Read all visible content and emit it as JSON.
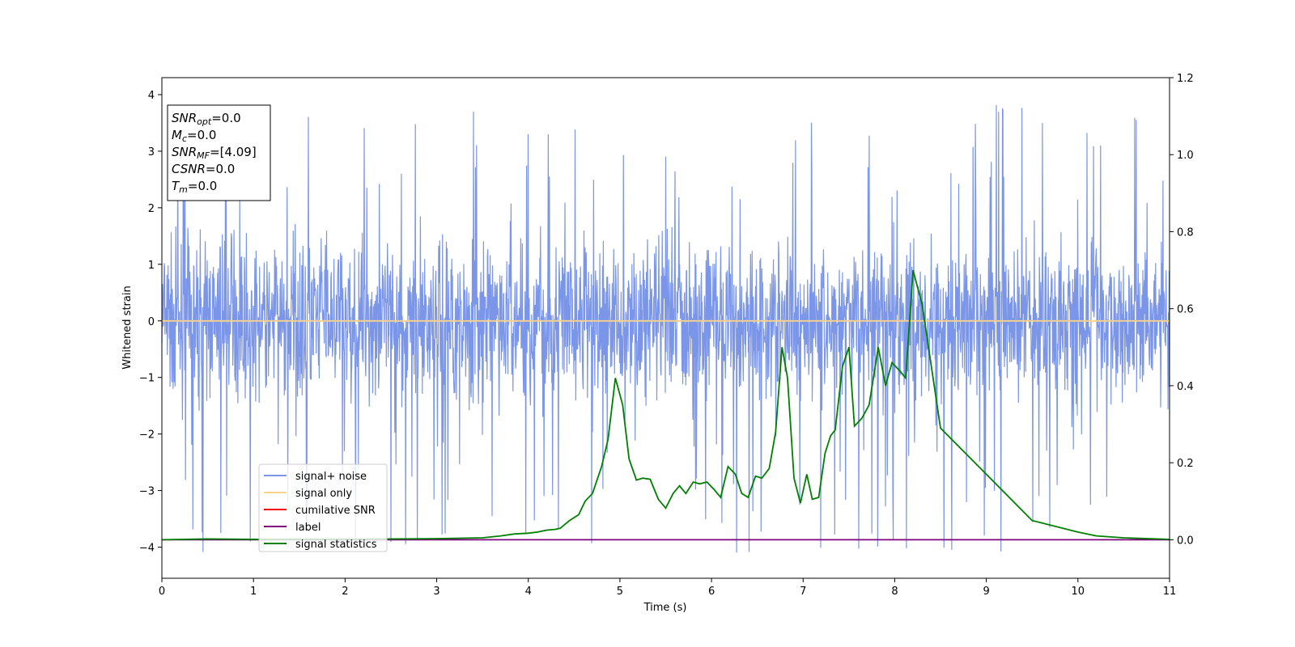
{
  "chart_data": {
    "type": "line",
    "xlabel": "Time (s)",
    "ylabel": "Whitened strain",
    "ylabel_right": "",
    "xlim": [
      0,
      11
    ],
    "ylim": [
      -4.55,
      4.3
    ],
    "ylim_right": [
      -0.1,
      1.2
    ],
    "x_ticks": [
      0,
      1,
      2,
      3,
      4,
      5,
      6,
      7,
      8,
      9,
      10,
      11
    ],
    "y_ticks": [
      -4,
      -3,
      -2,
      -1,
      0,
      1,
      2,
      3,
      4
    ],
    "y_ticks_right": [
      "0.0",
      "0.2",
      "0.4",
      "0.6",
      "0.8",
      "1.0",
      "1.2"
    ],
    "grid": false,
    "legend_position": "lower-left",
    "series": [
      {
        "name": "signal+ noise",
        "axis": "left",
        "color": "#7b96e8",
        "kind": "noise",
        "range": [
          -1.7,
          2.0
        ],
        "peak_low": -4.1,
        "peak_high": 3.9
      },
      {
        "name": "signal only",
        "axis": "left",
        "color": "#fdd18a",
        "x": [
          0,
          11
        ],
        "y": [
          0,
          0
        ]
      },
      {
        "name": "cumilative SNR",
        "axis": "right",
        "color": "#ff0000",
        "x": [],
        "y": []
      },
      {
        "name": "label",
        "axis": "right",
        "color": "#800080",
        "x": [
          0,
          11
        ],
        "y": [
          0.0,
          0.0
        ]
      },
      {
        "name": "signal statistics",
        "axis": "right",
        "color": "#008000",
        "x": [
          0,
          0.5,
          1,
          1.5,
          2,
          2.5,
          3,
          3.5,
          3.7,
          3.85,
          4.0,
          4.1,
          4.2,
          4.3,
          4.35,
          4.45,
          4.55,
          4.62,
          4.7,
          4.8,
          4.87,
          4.95,
          5.03,
          5.1,
          5.18,
          5.25,
          5.33,
          5.42,
          5.5,
          5.58,
          5.65,
          5.72,
          5.8,
          5.87,
          5.95,
          6.03,
          6.1,
          6.18,
          6.26,
          6.33,
          6.4,
          6.48,
          6.55,
          6.63,
          6.7,
          6.77,
          6.83,
          6.9,
          6.97,
          7.04,
          7.1,
          7.17,
          7.24,
          7.3,
          7.35,
          7.43,
          7.5,
          7.56,
          7.64,
          7.72,
          7.82,
          7.9,
          7.97,
          8.05,
          8.12,
          8.2,
          8.3,
          8.5,
          9,
          9.5,
          10,
          10.2,
          10.5,
          11
        ],
        "y": [
          0.0,
          0.002,
          0.001,
          0.001,
          0.001,
          0.002,
          0.003,
          0.005,
          0.01,
          0.015,
          0.017,
          0.02,
          0.025,
          0.027,
          0.03,
          0.05,
          0.065,
          0.1,
          0.12,
          0.19,
          0.26,
          0.42,
          0.35,
          0.21,
          0.155,
          0.16,
          0.157,
          0.105,
          0.082,
          0.12,
          0.14,
          0.12,
          0.15,
          0.145,
          0.15,
          0.13,
          0.11,
          0.19,
          0.17,
          0.12,
          0.11,
          0.165,
          0.16,
          0.185,
          0.28,
          0.5,
          0.42,
          0.16,
          0.095,
          0.17,
          0.105,
          0.11,
          0.225,
          0.27,
          0.285,
          0.45,
          0.5,
          0.295,
          0.315,
          0.35,
          0.5,
          0.4,
          0.46,
          0.44,
          0.42,
          0.7,
          0.61,
          0.29,
          0.17,
          0.05,
          0.02,
          0.01,
          0.005,
          0.001
        ]
      }
    ],
    "annotation_box": [
      {
        "key": "SNR",
        "sub": "opt",
        "value": "=0.0"
      },
      {
        "key": "M",
        "sub": "c",
        "value": "=0.0"
      },
      {
        "key": "SNR",
        "sub": "MF",
        "value": "=[4.09]"
      },
      {
        "key": "CSNR",
        "sub": "",
        "value": "=0.0"
      },
      {
        "key": "T",
        "sub": "m",
        "value": "=0.0"
      }
    ]
  }
}
